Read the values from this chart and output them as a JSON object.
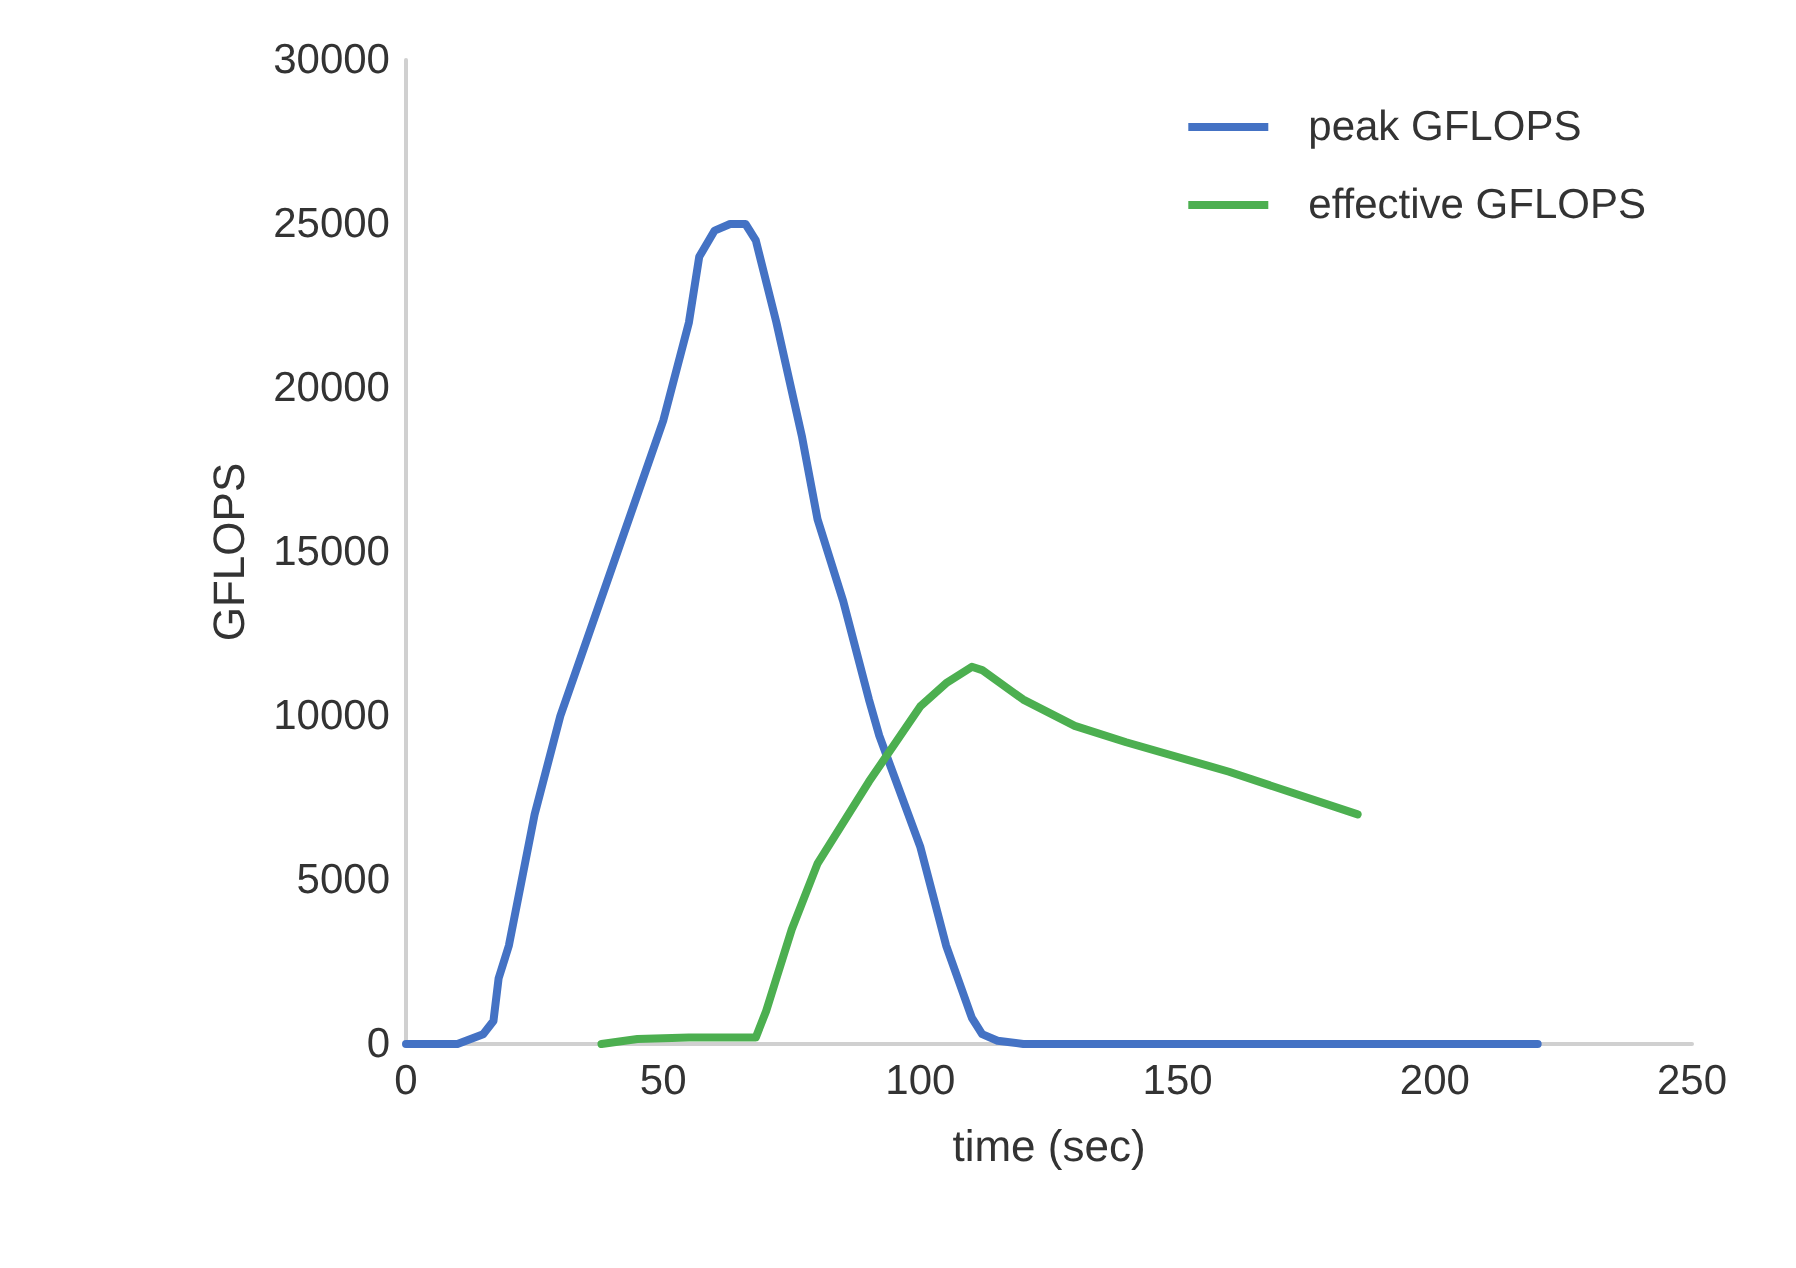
{
  "chart_data": {
    "type": "line",
    "xlabel": "time (sec)",
    "ylabel": "GFLOPS",
    "xlim": [
      0,
      250
    ],
    "xticks": [
      0,
      50,
      100,
      150,
      200,
      250
    ],
    "ylim": [
      0,
      30000
    ],
    "yticks": [
      0,
      5000,
      10000,
      15000,
      20000,
      25000,
      30000
    ],
    "grid": false,
    "legend": "top right",
    "marker": "none",
    "line_style": "solid",
    "series": [
      {
        "name": "peak GFLOPS",
        "color": "#4472c4",
        "x": [
          0,
          10,
          15,
          17,
          18,
          20,
          25,
          30,
          40,
          50,
          55,
          57,
          60,
          63,
          66,
          68,
          72,
          77,
          80,
          85,
          90,
          92,
          100,
          105,
          110,
          112,
          115,
          120,
          220
        ],
        "values": [
          0,
          0,
          300,
          700,
          2000,
          3000,
          7000,
          10000,
          14500,
          19000,
          22000,
          24000,
          24800,
          25000,
          25000,
          24500,
          22000,
          18500,
          16000,
          13500,
          10500,
          9400,
          6000,
          3000,
          800,
          300,
          100,
          0,
          0
        ]
      },
      {
        "name": "effective GFLOPS",
        "color": "#4caf50",
        "x": [
          38,
          45,
          55,
          68,
          70,
          72,
          75,
          80,
          90,
          100,
          105,
          110,
          112,
          120,
          130,
          140,
          160,
          185
        ],
        "values": [
          0,
          150,
          200,
          200,
          1000,
          2000,
          3500,
          5500,
          8000,
          10300,
          11000,
          11500,
          11400,
          10500,
          9700,
          9200,
          8300,
          7000
        ]
      }
    ]
  }
}
